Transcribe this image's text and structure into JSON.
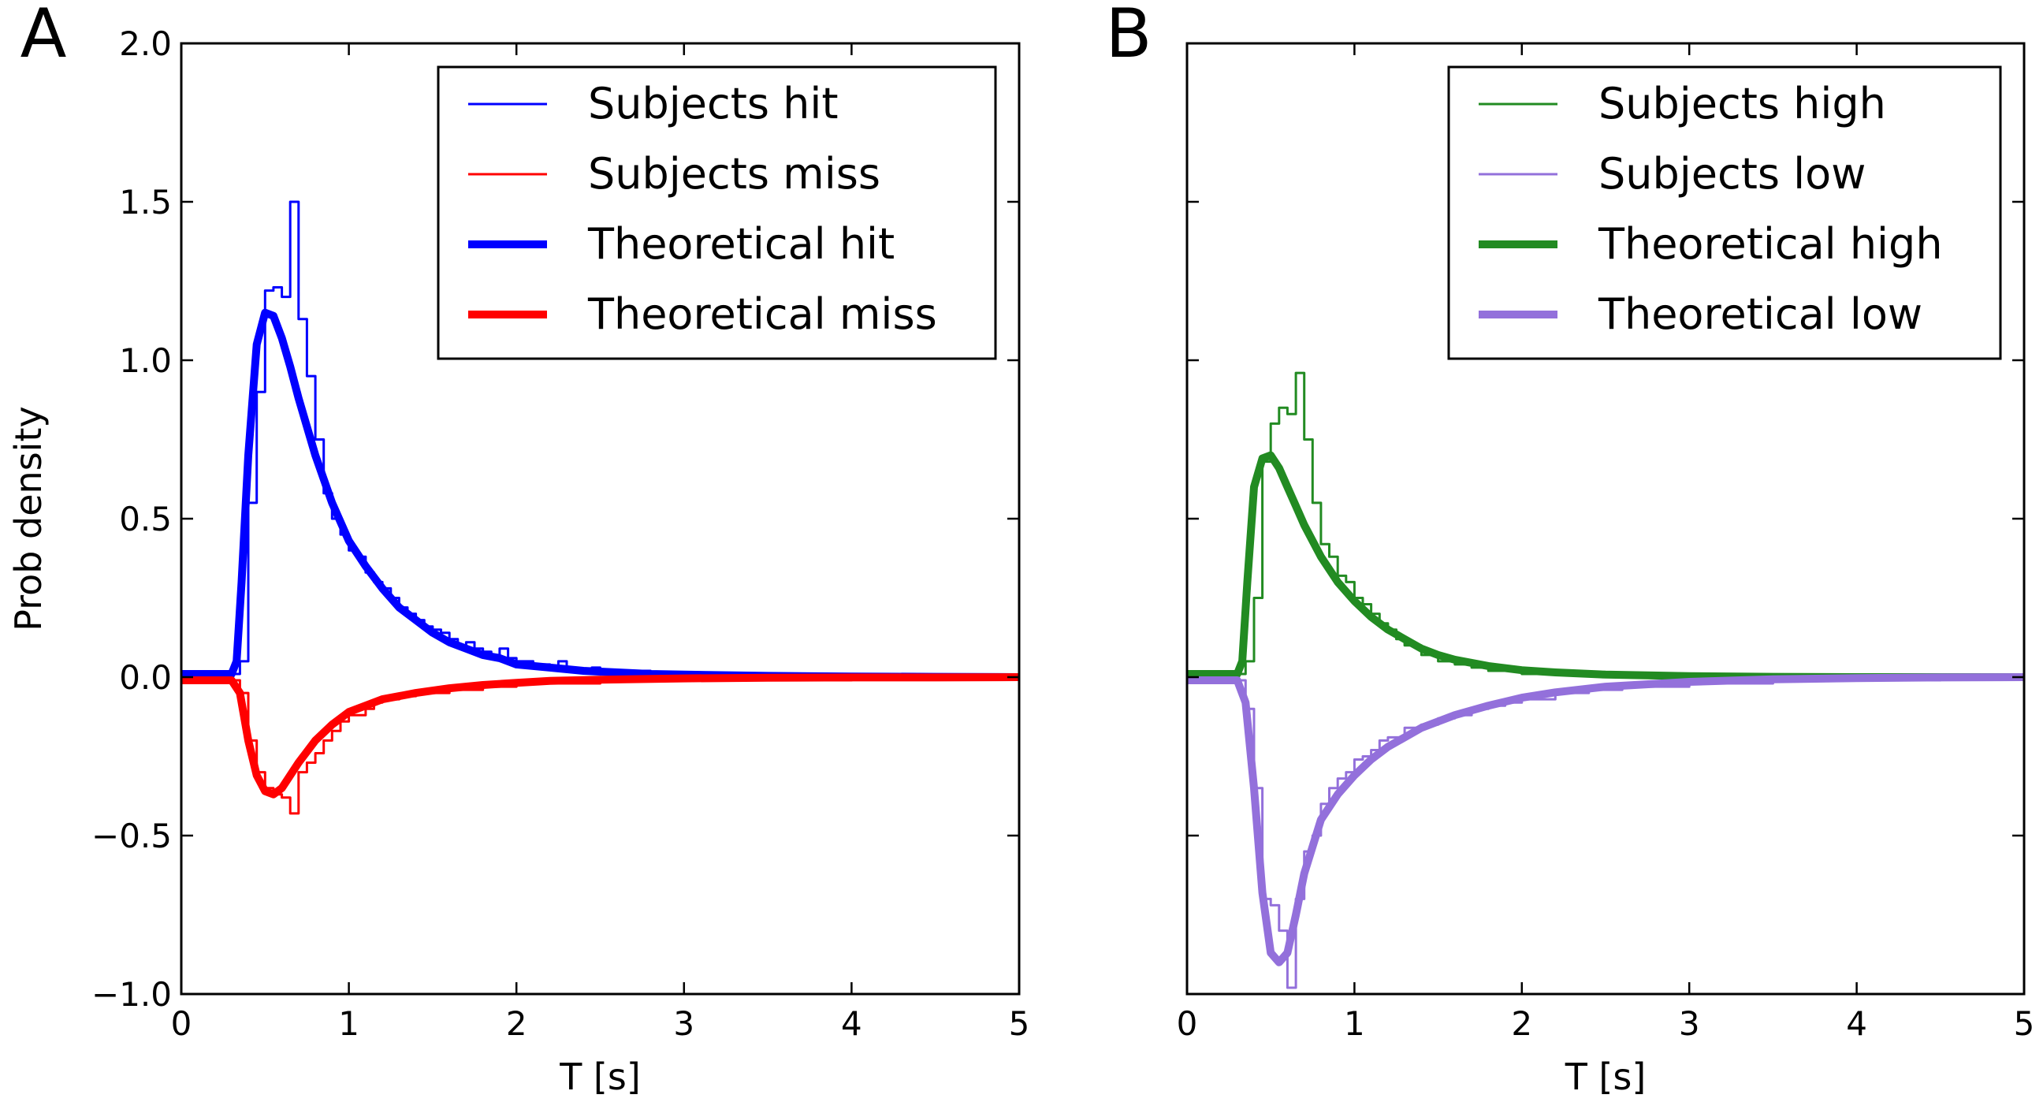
{
  "chart_data": [
    {
      "type": "line",
      "panel_label": "A",
      "xlabel": "T [s]",
      "ylabel": "Prob density",
      "xlim": [
        0,
        5
      ],
      "ylim": [
        -1.0,
        2.0
      ],
      "xticks": [
        0,
        1,
        2,
        3,
        4,
        5
      ],
      "xtick_labels": [
        "0",
        "1",
        "2",
        "3",
        "4",
        "5"
      ],
      "yticks": [
        -1.0,
        -0.5,
        0.0,
        0.5,
        1.0,
        1.5,
        2.0
      ],
      "ytick_labels": [
        "−1.0",
        "−0.5",
        "0.0",
        "0.5",
        "1.0",
        "1.5",
        "2.0"
      ],
      "grid": false,
      "legend_position": "top-right",
      "series": [
        {
          "name": "Subjects hit",
          "kind": "step",
          "color": "#0000ff",
          "x": [
            0,
            0.05,
            0.1,
            0.15,
            0.2,
            0.25,
            0.3,
            0.35,
            0.4,
            0.45,
            0.5,
            0.55,
            0.6,
            0.65,
            0.7,
            0.75,
            0.8,
            0.85,
            0.9,
            0.95,
            1.0,
            1.05,
            1.1,
            1.15,
            1.2,
            1.25,
            1.3,
            1.35,
            1.4,
            1.45,
            1.5,
            1.55,
            1.6,
            1.65,
            1.7,
            1.75,
            1.8,
            1.85,
            1.9,
            1.95,
            2.0,
            2.05,
            2.1,
            2.15,
            2.2,
            2.25,
            2.3,
            2.35,
            2.4,
            2.45,
            2.5,
            2.55,
            2.6,
            2.65,
            2.7,
            2.75,
            2.8,
            2.9,
            3.0,
            3.5,
            4.0,
            4.5,
            5.0
          ],
          "y": [
            0.01,
            0.01,
            0.01,
            0.01,
            0.01,
            0.01,
            0.01,
            0.05,
            0.55,
            0.9,
            1.22,
            1.23,
            1.2,
            1.5,
            1.13,
            0.95,
            0.75,
            0.58,
            0.5,
            0.45,
            0.4,
            0.38,
            0.33,
            0.3,
            0.28,
            0.25,
            0.22,
            0.2,
            0.18,
            0.16,
            0.15,
            0.14,
            0.12,
            0.1,
            0.11,
            0.09,
            0.08,
            0.07,
            0.09,
            0.06,
            0.05,
            0.05,
            0.04,
            0.04,
            0.03,
            0.05,
            0.03,
            0.02,
            0.02,
            0.03,
            0.02,
            0.02,
            0.02,
            0.01,
            0.01,
            0.02,
            0.01,
            0.01,
            0.01,
            0.01,
            0.0,
            0.0,
            0.0
          ]
        },
        {
          "name": "Subjects miss",
          "kind": "step",
          "color": "#ff0000",
          "x": [
            0,
            0.1,
            0.2,
            0.3,
            0.35,
            0.4,
            0.45,
            0.5,
            0.55,
            0.6,
            0.65,
            0.7,
            0.75,
            0.8,
            0.85,
            0.9,
            0.95,
            1.0,
            1.05,
            1.1,
            1.15,
            1.2,
            1.3,
            1.4,
            1.5,
            1.6,
            1.8,
            2.0,
            2.5,
            3.0,
            4.0,
            5.0
          ],
          "y": [
            -0.01,
            -0.01,
            -0.01,
            -0.01,
            -0.05,
            -0.2,
            -0.3,
            -0.35,
            -0.37,
            -0.38,
            -0.43,
            -0.3,
            -0.27,
            -0.24,
            -0.2,
            -0.17,
            -0.14,
            -0.12,
            -0.12,
            -0.1,
            -0.08,
            -0.07,
            -0.06,
            -0.05,
            -0.05,
            -0.04,
            -0.03,
            -0.02,
            -0.01,
            -0.01,
            0.0,
            0.0
          ]
        },
        {
          "name": "Theoretical hit",
          "kind": "line",
          "color": "#0000ff",
          "x": [
            0,
            0.3,
            0.33,
            0.36,
            0.4,
            0.45,
            0.5,
            0.55,
            0.6,
            0.65,
            0.7,
            0.8,
            0.9,
            1.0,
            1.1,
            1.2,
            1.3,
            1.4,
            1.5,
            1.6,
            1.7,
            1.8,
            1.9,
            2.0,
            2.2,
            2.4,
            2.6,
            2.8,
            3.0,
            3.5,
            4.0,
            4.5,
            5.0
          ],
          "y": [
            0.01,
            0.01,
            0.05,
            0.3,
            0.7,
            1.05,
            1.15,
            1.14,
            1.07,
            0.98,
            0.88,
            0.7,
            0.55,
            0.43,
            0.35,
            0.28,
            0.22,
            0.18,
            0.14,
            0.11,
            0.09,
            0.07,
            0.06,
            0.04,
            0.03,
            0.02,
            0.015,
            0.01,
            0.008,
            0.004,
            0.002,
            0.001,
            0.0
          ]
        },
        {
          "name": "Theoretical miss",
          "kind": "line",
          "color": "#ff0000",
          "x": [
            0,
            0.3,
            0.35,
            0.4,
            0.45,
            0.5,
            0.55,
            0.6,
            0.65,
            0.7,
            0.8,
            0.9,
            1.0,
            1.2,
            1.4,
            1.6,
            1.8,
            2.0,
            2.2,
            2.5,
            3.0,
            3.5,
            4.0,
            4.5,
            5.0
          ],
          "y": [
            -0.01,
            -0.01,
            -0.05,
            -0.2,
            -0.31,
            -0.36,
            -0.37,
            -0.35,
            -0.31,
            -0.27,
            -0.2,
            -0.15,
            -0.11,
            -0.07,
            -0.05,
            -0.035,
            -0.025,
            -0.018,
            -0.012,
            -0.008,
            -0.004,
            -0.002,
            -0.001,
            -0.001,
            0.0
          ]
        }
      ]
    },
    {
      "type": "line",
      "panel_label": "B",
      "xlabel": "T [s]",
      "ylabel": "",
      "xlim": [
        0,
        5
      ],
      "ylim": [
        -1.0,
        2.0
      ],
      "xticks": [
        0,
        1,
        2,
        3,
        4,
        5
      ],
      "xtick_labels": [
        "0",
        "1",
        "2",
        "3",
        "4",
        "5"
      ],
      "yticks": [
        -1.0,
        -0.5,
        0.0,
        0.5,
        1.0,
        1.5,
        2.0
      ],
      "ytick_labels": [],
      "grid": false,
      "legend_position": "top-right",
      "series": [
        {
          "name": "Subjects high",
          "kind": "step",
          "color": "#228b22",
          "x": [
            0,
            0.1,
            0.2,
            0.3,
            0.35,
            0.4,
            0.45,
            0.5,
            0.55,
            0.6,
            0.65,
            0.7,
            0.75,
            0.8,
            0.85,
            0.9,
            0.95,
            1.0,
            1.05,
            1.1,
            1.15,
            1.2,
            1.25,
            1.3,
            1.4,
            1.5,
            1.6,
            1.7,
            1.8,
            2.0,
            2.5,
            3.0,
            4.0,
            5.0
          ],
          "y": [
            0.01,
            0.01,
            0.01,
            0.01,
            0.05,
            0.25,
            0.68,
            0.8,
            0.85,
            0.83,
            0.96,
            0.75,
            0.55,
            0.42,
            0.38,
            0.32,
            0.3,
            0.25,
            0.23,
            0.2,
            0.17,
            0.15,
            0.12,
            0.1,
            0.07,
            0.05,
            0.04,
            0.03,
            0.02,
            0.01,
            0.01,
            0.0,
            0.0,
            0.0
          ]
        },
        {
          "name": "Subjects low",
          "kind": "step",
          "color": "#9370db",
          "x": [
            0,
            0.1,
            0.2,
            0.3,
            0.35,
            0.4,
            0.45,
            0.5,
            0.55,
            0.6,
            0.65,
            0.7,
            0.75,
            0.8,
            0.85,
            0.9,
            0.95,
            1.0,
            1.05,
            1.1,
            1.15,
            1.2,
            1.3,
            1.4,
            1.5,
            1.6,
            1.7,
            1.8,
            1.9,
            2.0,
            2.2,
            2.4,
            2.6,
            2.8,
            3.0,
            3.5,
            4.0,
            4.5,
            5.0
          ],
          "y": [
            -0.01,
            -0.01,
            -0.01,
            -0.01,
            -0.1,
            -0.35,
            -0.7,
            -0.72,
            -0.8,
            -0.98,
            -0.7,
            -0.55,
            -0.5,
            -0.4,
            -0.35,
            -0.32,
            -0.3,
            -0.26,
            -0.25,
            -0.23,
            -0.2,
            -0.19,
            -0.16,
            -0.15,
            -0.13,
            -0.12,
            -0.1,
            -0.09,
            -0.08,
            -0.07,
            -0.05,
            -0.04,
            -0.03,
            -0.03,
            -0.02,
            -0.01,
            -0.01,
            0.0,
            0.0
          ]
        },
        {
          "name": "Theoretical high",
          "kind": "line",
          "color": "#228b22",
          "x": [
            0,
            0.3,
            0.33,
            0.36,
            0.4,
            0.45,
            0.5,
            0.55,
            0.6,
            0.65,
            0.7,
            0.8,
            0.9,
            1.0,
            1.1,
            1.2,
            1.3,
            1.4,
            1.5,
            1.6,
            1.8,
            2.0,
            2.2,
            2.5,
            3.0,
            3.5,
            4.0,
            4.5,
            5.0
          ],
          "y": [
            0.01,
            0.01,
            0.05,
            0.3,
            0.6,
            0.69,
            0.7,
            0.66,
            0.6,
            0.54,
            0.48,
            0.38,
            0.3,
            0.24,
            0.19,
            0.15,
            0.12,
            0.09,
            0.07,
            0.055,
            0.035,
            0.022,
            0.015,
            0.008,
            0.003,
            0.001,
            0.0,
            0.0,
            0.0
          ]
        },
        {
          "name": "Theoretical low",
          "kind": "line",
          "color": "#9370db",
          "x": [
            0,
            0.3,
            0.35,
            0.4,
            0.45,
            0.5,
            0.55,
            0.6,
            0.65,
            0.7,
            0.8,
            0.9,
            1.0,
            1.1,
            1.2,
            1.4,
            1.6,
            1.8,
            2.0,
            2.2,
            2.5,
            3.0,
            3.5,
            4.0,
            4.5,
            5.0
          ],
          "y": [
            -0.01,
            -0.01,
            -0.08,
            -0.35,
            -0.68,
            -0.87,
            -0.9,
            -0.87,
            -0.75,
            -0.62,
            -0.45,
            -0.37,
            -0.31,
            -0.26,
            -0.22,
            -0.16,
            -0.12,
            -0.09,
            -0.065,
            -0.048,
            -0.03,
            -0.015,
            -0.007,
            -0.003,
            -0.001,
            0.0
          ]
        }
      ]
    }
  ]
}
